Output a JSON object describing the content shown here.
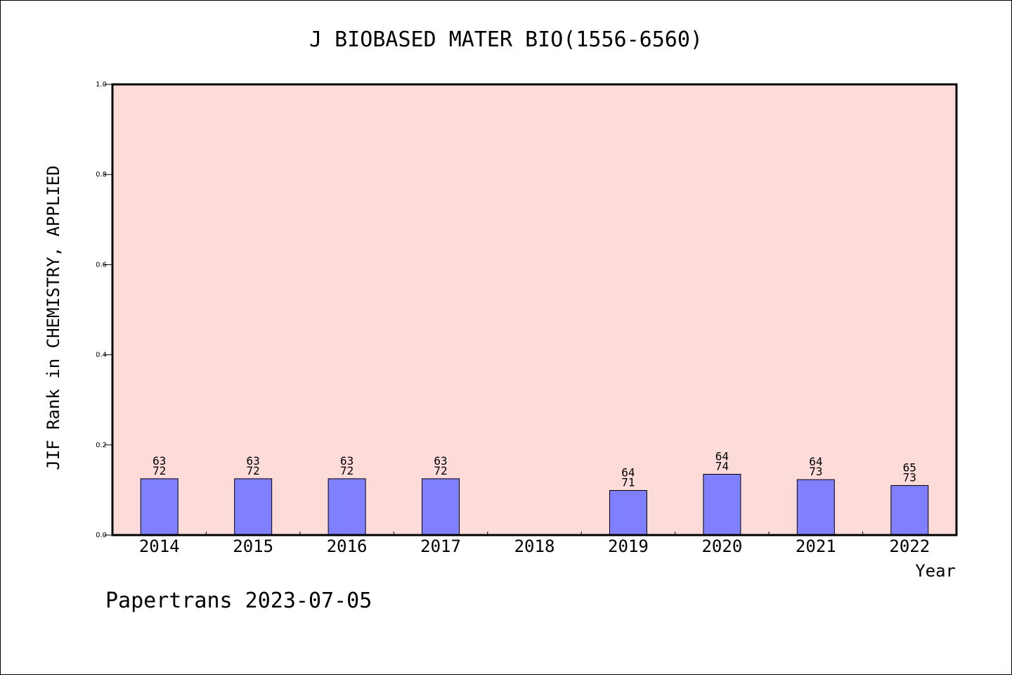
{
  "chart_data": {
    "type": "bar",
    "title": "J BIOBASED MATER BIO(1556-6560)",
    "xlabel": "Year",
    "ylabel": "JIF Rank in CHEMISTRY, APPLIED",
    "ylim": [
      0,
      1.0
    ],
    "yticks": [
      "0.0",
      "0.2",
      "0.4",
      "0.6",
      "0.8",
      "1.0"
    ],
    "categories": [
      "2014",
      "2015",
      "2016",
      "2017",
      "2018",
      "2019",
      "2020",
      "2021",
      "2022"
    ],
    "values": [
      0.125,
      0.125,
      0.125,
      0.125,
      null,
      0.099,
      0.135,
      0.123,
      0.11
    ],
    "labels": [
      [
        "63",
        "72"
      ],
      [
        "63",
        "72"
      ],
      [
        "63",
        "72"
      ],
      [
        "63",
        "72"
      ],
      null,
      [
        "64",
        "71"
      ],
      [
        "64",
        "74"
      ],
      [
        "64",
        "73"
      ],
      [
        "65",
        "73"
      ]
    ],
    "grid": false,
    "colors": {
      "plot_background": "#fddbd8",
      "bar_fill": "#8080ff",
      "bar_stroke": "#000000"
    }
  },
  "footer": "Papertrans 2023-07-05"
}
